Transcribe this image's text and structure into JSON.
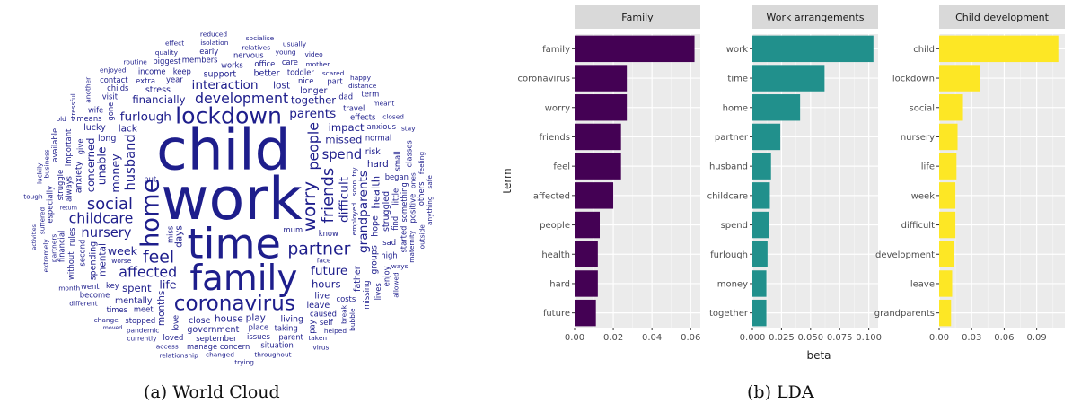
{
  "captions": {
    "a": "(a) World Cloud",
    "b": "(b) LDA"
  },
  "word_cloud": {
    "color": "#1e1e8c",
    "words": [
      {
        "text": "work",
        "size": 62
      },
      {
        "text": "child",
        "size": 60
      },
      {
        "text": "time",
        "size": 44
      },
      {
        "text": "family",
        "size": 37
      },
      {
        "text": "home",
        "size": 26
      },
      {
        "text": "lockdown",
        "size": 24
      },
      {
        "text": "coronavirus",
        "size": 22
      },
      {
        "text": "worry",
        "size": 19
      },
      {
        "text": "partner",
        "size": 18
      },
      {
        "text": "friends",
        "size": 17
      },
      {
        "text": "social",
        "size": 17
      },
      {
        "text": "feel",
        "size": 18
      },
      {
        "text": "affected",
        "size": 15
      },
      {
        "text": "people",
        "size": 15
      },
      {
        "text": "development",
        "size": 15
      },
      {
        "text": "childcare",
        "size": 15
      },
      {
        "text": "husband",
        "size": 14
      },
      {
        "text": "spend",
        "size": 14
      },
      {
        "text": "nursery",
        "size": 14
      },
      {
        "text": "grandparents",
        "size": 13
      },
      {
        "text": "furlough",
        "size": 13
      },
      {
        "text": "parents",
        "size": 13
      },
      {
        "text": "difficult",
        "size": 13
      },
      {
        "text": "interaction",
        "size": 13
      },
      {
        "text": "future",
        "size": 13
      },
      {
        "text": "money",
        "size": 12
      },
      {
        "text": "life",
        "size": 12
      },
      {
        "text": "week",
        "size": 12
      },
      {
        "text": "unable",
        "size": 12
      },
      {
        "text": "financially",
        "size": 11
      },
      {
        "text": "missed",
        "size": 11
      },
      {
        "text": "health",
        "size": 11
      },
      {
        "text": "hours",
        "size": 11
      },
      {
        "text": "together",
        "size": 11
      },
      {
        "text": "concerned",
        "size": 11
      },
      {
        "text": "impact",
        "size": 11
      },
      {
        "text": "spent",
        "size": 11
      },
      {
        "text": "months",
        "size": 10
      },
      {
        "text": "lack",
        "size": 10
      },
      {
        "text": "play",
        "size": 10
      },
      {
        "text": "days",
        "size": 10
      },
      {
        "text": "lost",
        "size": 10
      },
      {
        "text": "house",
        "size": 10
      },
      {
        "text": "mental",
        "size": 10
      },
      {
        "text": "hard",
        "size": 10
      },
      {
        "text": "live",
        "size": 9
      },
      {
        "text": "hope",
        "size": 9
      },
      {
        "text": "long",
        "size": 9
      },
      {
        "text": "stress",
        "size": 9
      },
      {
        "text": "miss",
        "size": 8
      },
      {
        "text": "anxiety",
        "size": 9
      },
      {
        "text": "close",
        "size": 9
      },
      {
        "text": "risk",
        "size": 9
      },
      {
        "text": "struggled",
        "size": 9
      },
      {
        "text": "support",
        "size": 9
      },
      {
        "text": "better",
        "size": 9
      },
      {
        "text": "spending",
        "size": 9
      },
      {
        "text": "longer",
        "size": 9
      },
      {
        "text": "mentally",
        "size": 9
      },
      {
        "text": "effects",
        "size": 8
      },
      {
        "text": "place",
        "size": 8
      },
      {
        "text": "little",
        "size": 8
      },
      {
        "text": "normal",
        "size": 8
      },
      {
        "text": "year",
        "size": 8
      },
      {
        "text": "second",
        "size": 8
      },
      {
        "text": "meet",
        "size": 8
      },
      {
        "text": "key",
        "size": 8
      },
      {
        "text": "always",
        "size": 8
      },
      {
        "text": "mum",
        "size": 8
      },
      {
        "text": "put",
        "size": 8
      },
      {
        "text": "love",
        "size": 8
      },
      {
        "text": "nice",
        "size": 8
      },
      {
        "text": "works",
        "size": 8
      },
      {
        "text": "rules",
        "size": 8
      },
      {
        "text": "began",
        "size": 8
      },
      {
        "text": "travel",
        "size": 8
      },
      {
        "text": "gone",
        "size": 8
      },
      {
        "text": "sad",
        "size": 8
      },
      {
        "text": "costs",
        "size": 8
      },
      {
        "text": "struggle",
        "size": 8
      },
      {
        "text": "office",
        "size": 8
      },
      {
        "text": "keep",
        "size": 8
      },
      {
        "text": "something",
        "size": 8
      },
      {
        "text": "taking",
        "size": 8
      },
      {
        "text": "extra",
        "size": 8
      },
      {
        "text": "important",
        "size": 8
      },
      {
        "text": "september",
        "size": 8
      },
      {
        "text": "toddler",
        "size": 8
      },
      {
        "text": "give",
        "size": 8
      },
      {
        "text": "means",
        "size": 8
      },
      {
        "text": "anxious",
        "size": 8
      },
      {
        "text": "small",
        "size": 8
      },
      {
        "text": "pandemic",
        "size": 7
      },
      {
        "text": "suffered",
        "size": 7
      },
      {
        "text": "mother",
        "size": 7
      },
      {
        "text": "face",
        "size": 7
      },
      {
        "text": "high",
        "size": 8
      },
      {
        "text": "caused",
        "size": 8
      },
      {
        "text": "financial",
        "size": 8
      },
      {
        "text": "stopped",
        "size": 8
      },
      {
        "text": "break",
        "size": 7
      },
      {
        "text": "issues",
        "size": 8
      },
      {
        "text": "relatives",
        "size": 7
      },
      {
        "text": "worse",
        "size": 7
      },
      {
        "text": "especially",
        "size": 8
      },
      {
        "text": "members",
        "size": 8
      },
      {
        "text": "visit",
        "size": 8
      },
      {
        "text": "missing",
        "size": 8
      },
      {
        "text": "dad",
        "size": 8
      },
      {
        "text": "income",
        "size": 8
      },
      {
        "text": "positive",
        "size": 8
      },
      {
        "text": "soon",
        "size": 7
      },
      {
        "text": "distance",
        "size": 7
      },
      {
        "text": "scared",
        "size": 7
      },
      {
        "text": "nervous",
        "size": 8
      },
      {
        "text": "bubble",
        "size": 7
      },
      {
        "text": "young",
        "size": 7
      },
      {
        "text": "ways",
        "size": 7
      },
      {
        "text": "become",
        "size": 8
      },
      {
        "text": "find",
        "size": 8
      },
      {
        "text": "childs",
        "size": 8
      },
      {
        "text": "activities",
        "size": 6
      },
      {
        "text": "maternity",
        "size": 7
      },
      {
        "text": "meant",
        "size": 7
      },
      {
        "text": "changed",
        "size": 7
      },
      {
        "text": "business",
        "size": 7
      },
      {
        "text": "taken",
        "size": 7
      },
      {
        "text": "quality",
        "size": 7
      },
      {
        "text": "employed",
        "size": 7
      },
      {
        "text": "went",
        "size": 8
      },
      {
        "text": "without",
        "size": 8
      },
      {
        "text": "parent",
        "size": 8
      },
      {
        "text": "wife",
        "size": 8
      },
      {
        "text": "started",
        "size": 8
      },
      {
        "text": "times",
        "size": 8
      },
      {
        "text": "know",
        "size": 8
      },
      {
        "text": "currently",
        "size": 7
      },
      {
        "text": "closed",
        "size": 7
      },
      {
        "text": "stressful",
        "size": 7
      },
      {
        "text": "access",
        "size": 7
      },
      {
        "text": "helped",
        "size": 7
      },
      {
        "text": "luckily",
        "size": 7
      },
      {
        "text": "throughout",
        "size": 7
      },
      {
        "text": "change",
        "size": 7
      },
      {
        "text": "feeling",
        "size": 7
      },
      {
        "text": "isolation",
        "size": 7
      },
      {
        "text": "relationship",
        "size": 7
      },
      {
        "text": "another",
        "size": 7
      },
      {
        "text": "pay",
        "size": 8
      },
      {
        "text": "part",
        "size": 8
      },
      {
        "text": "enjoyed",
        "size": 7
      },
      {
        "text": "different",
        "size": 7
      },
      {
        "text": "outside",
        "size": 7
      },
      {
        "text": "self",
        "size": 8
      },
      {
        "text": "month",
        "size": 7
      },
      {
        "text": "enjoy",
        "size": 8
      },
      {
        "text": "loved",
        "size": 8
      },
      {
        "text": "care",
        "size": 8
      },
      {
        "text": "groups",
        "size": 9
      },
      {
        "text": "classes",
        "size": 8
      },
      {
        "text": "concern",
        "size": 8
      },
      {
        "text": "living",
        "size": 9
      },
      {
        "text": "routine",
        "size": 7
      },
      {
        "text": "extremely",
        "size": 7
      },
      {
        "text": "tough",
        "size": 7
      },
      {
        "text": "manage",
        "size": 8
      },
      {
        "text": "video",
        "size": 7
      },
      {
        "text": "available",
        "size": 8
      },
      {
        "text": "situation",
        "size": 8
      },
      {
        "text": "government",
        "size": 9
      },
      {
        "text": "partners",
        "size": 7
      },
      {
        "text": "father",
        "size": 9
      },
      {
        "text": "biggest",
        "size": 8
      },
      {
        "text": "socialise",
        "size": 7
      },
      {
        "text": "others",
        "size": 8
      },
      {
        "text": "trying",
        "size": 7
      },
      {
        "text": "allowed",
        "size": 7
      },
      {
        "text": "early",
        "size": 8
      },
      {
        "text": "reduced",
        "size": 7
      },
      {
        "text": "stay",
        "size": 7
      },
      {
        "text": "try",
        "size": 7
      },
      {
        "text": "happy",
        "size": 7
      },
      {
        "text": "lucky",
        "size": 9
      },
      {
        "text": "effect",
        "size": 7
      },
      {
        "text": "leave",
        "size": 9
      },
      {
        "text": "safe",
        "size": 7
      },
      {
        "text": "old",
        "size": 7
      },
      {
        "text": "term",
        "size": 8
      },
      {
        "text": "moved",
        "size": 6
      },
      {
        "text": "affected",
        "size": 7
      },
      {
        "text": "anything",
        "size": 7
      },
      {
        "text": "lives",
        "size": 8
      },
      {
        "text": "return",
        "size": 6
      },
      {
        "text": "contact",
        "size": 8
      },
      {
        "text": "virus",
        "size": 7
      },
      {
        "text": "impacted",
        "size": 7
      },
      {
        "text": "ones",
        "size": 7
      },
      {
        "text": "usually",
        "size": 7
      },
      {
        "text": "economy",
        "size": 7
      }
    ]
  },
  "chart_data": {
    "type": "bar",
    "xlabel": "beta",
    "ylabel": "term",
    "panels": [
      {
        "title": "Family",
        "color": "#440154",
        "terms": [
          "family",
          "coronavirus",
          "worry",
          "friends",
          "feel",
          "affected",
          "people",
          "health",
          "hard",
          "future"
        ],
        "values": [
          0.062,
          0.027,
          0.027,
          0.024,
          0.024,
          0.02,
          0.013,
          0.012,
          0.012,
          0.011
        ],
        "xlim": [
          0,
          0.065
        ],
        "xticks": [
          0.0,
          0.02,
          0.04,
          0.06
        ],
        "xtick_labels": [
          "0.00",
          "0.02",
          "0.04",
          "0.06"
        ]
      },
      {
        "title": "Work arrangements",
        "color": "#21908c",
        "terms": [
          "work",
          "time",
          "home",
          "partner",
          "husband",
          "childcare",
          "spend",
          "furlough",
          "money",
          "together"
        ],
        "values": [
          0.104,
          0.062,
          0.041,
          0.024,
          0.016,
          0.015,
          0.014,
          0.013,
          0.012,
          0.012
        ],
        "xlim": [
          0,
          0.108
        ],
        "xticks": [
          0.0,
          0.025,
          0.05,
          0.075,
          0.1
        ],
        "xtick_labels": [
          "0.000",
          "0.025",
          "0.050",
          "0.075",
          "0.100"
        ]
      },
      {
        "title": "Child development",
        "color": "#fde725",
        "terms": [
          "child",
          "lockdown",
          "social",
          "nursery",
          "life",
          "week",
          "difficult",
          "development",
          "leave",
          "grandparents"
        ],
        "values": [
          0.11,
          0.038,
          0.022,
          0.017,
          0.016,
          0.015,
          0.015,
          0.014,
          0.012,
          0.011
        ],
        "xlim": [
          0,
          0.116
        ],
        "xticks": [
          0.0,
          0.03,
          0.06,
          0.09
        ],
        "xtick_labels": [
          "0.00",
          "0.03",
          "0.06",
          "0.09"
        ]
      }
    ]
  }
}
